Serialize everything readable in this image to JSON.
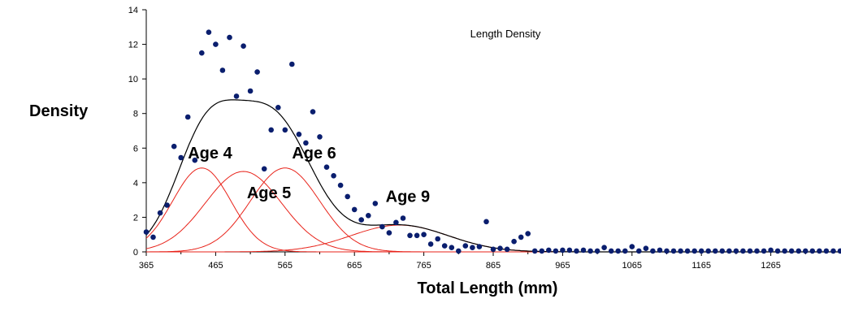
{
  "chart_data": {
    "type": "scatter",
    "title": "Length Density",
    "xlabel": "Total Length  (mm)",
    "ylabel": "Density",
    "xlim": [
      365,
      1365
    ],
    "ylim": [
      0,
      14
    ],
    "x_ticks": [
      "365",
      "465",
      "565",
      "665",
      "765",
      "865",
      "965",
      "1065",
      "1165",
      "1265"
    ],
    "y_ticks": [
      "0",
      "2",
      "4",
      "6",
      "8",
      "10",
      "12",
      "14"
    ],
    "grid": false,
    "colors": {
      "points": "#0a1e6e",
      "total_curve": "#000000",
      "component_curves": "#e8231a"
    },
    "observed_points": [
      [
        365,
        1.15
      ],
      [
        375,
        0.85
      ],
      [
        385,
        2.25
      ],
      [
        395,
        2.7
      ],
      [
        405,
        6.1
      ],
      [
        415,
        5.45
      ],
      [
        425,
        7.8
      ],
      [
        435,
        5.3
      ],
      [
        445,
        11.5
      ],
      [
        455,
        12.7
      ],
      [
        465,
        12.0
      ],
      [
        475,
        10.5
      ],
      [
        485,
        12.4
      ],
      [
        495,
        9.0
      ],
      [
        505,
        11.9
      ],
      [
        515,
        9.3
      ],
      [
        525,
        10.4
      ],
      [
        535,
        4.8
      ],
      [
        545,
        7.05
      ],
      [
        555,
        8.35
      ],
      [
        565,
        7.05
      ],
      [
        575,
        10.85
      ],
      [
        585,
        6.8
      ],
      [
        595,
        6.3
      ],
      [
        605,
        8.1
      ],
      [
        615,
        6.65
      ],
      [
        625,
        4.9
      ],
      [
        635,
        4.4
      ],
      [
        645,
        3.85
      ],
      [
        655,
        3.2
      ],
      [
        665,
        2.45
      ],
      [
        675,
        1.85
      ],
      [
        685,
        2.1
      ],
      [
        695,
        2.8
      ],
      [
        705,
        1.45
      ],
      [
        715,
        1.1
      ],
      [
        725,
        1.7
      ],
      [
        735,
        1.95
      ],
      [
        745,
        0.95
      ],
      [
        755,
        0.95
      ],
      [
        765,
        1.0
      ],
      [
        775,
        0.45
      ],
      [
        785,
        0.75
      ],
      [
        795,
        0.35
      ],
      [
        805,
        0.25
      ],
      [
        815,
        0.05
      ],
      [
        825,
        0.35
      ],
      [
        835,
        0.25
      ],
      [
        845,
        0.3
      ],
      [
        855,
        1.75
      ],
      [
        865,
        0.15
      ],
      [
        875,
        0.2
      ],
      [
        885,
        0.15
      ],
      [
        895,
        0.6
      ],
      [
        905,
        0.85
      ],
      [
        915,
        1.05
      ],
      [
        925,
        0.05
      ],
      [
        935,
        0.05
      ],
      [
        945,
        0.1
      ],
      [
        955,
        0.05
      ],
      [
        965,
        0.1
      ],
      [
        975,
        0.1
      ],
      [
        985,
        0.05
      ],
      [
        995,
        0.1
      ],
      [
        1005,
        0.05
      ],
      [
        1015,
        0.05
      ],
      [
        1025,
        0.25
      ],
      [
        1035,
        0.05
      ],
      [
        1045,
        0.05
      ],
      [
        1055,
        0.05
      ],
      [
        1065,
        0.3
      ],
      [
        1075,
        0.05
      ],
      [
        1085,
        0.2
      ],
      [
        1095,
        0.05
      ],
      [
        1105,
        0.1
      ],
      [
        1115,
        0.05
      ],
      [
        1125,
        0.05
      ],
      [
        1135,
        0.05
      ],
      [
        1145,
        0.05
      ],
      [
        1155,
        0.05
      ],
      [
        1165,
        0.05
      ],
      [
        1175,
        0.05
      ],
      [
        1185,
        0.05
      ],
      [
        1195,
        0.05
      ],
      [
        1205,
        0.05
      ],
      [
        1215,
        0.05
      ],
      [
        1225,
        0.05
      ],
      [
        1235,
        0.05
      ],
      [
        1245,
        0.05
      ],
      [
        1255,
        0.05
      ],
      [
        1265,
        0.1
      ],
      [
        1275,
        0.05
      ],
      [
        1285,
        0.05
      ],
      [
        1295,
        0.05
      ],
      [
        1305,
        0.05
      ],
      [
        1315,
        0.05
      ],
      [
        1325,
        0.05
      ],
      [
        1335,
        0.05
      ],
      [
        1345,
        0.05
      ],
      [
        1355,
        0.05
      ],
      [
        1365,
        0.05
      ]
    ],
    "components": [
      {
        "name": "Age 4",
        "mean": 445,
        "sd": 42,
        "peak": 4.85
      },
      {
        "name": "Age 5",
        "mean": 505,
        "sd": 55,
        "peak": 4.65
      },
      {
        "name": "Age 6",
        "mean": 565,
        "sd": 50,
        "peak": 4.85
      },
      {
        "name": "Age 9",
        "mean": 730,
        "sd": 70,
        "peak": 1.55
      }
    ],
    "annotations": [
      {
        "text": "Age 4",
        "x": 425,
        "y": 5.4
      },
      {
        "text": "Age 5",
        "x": 510,
        "y": 3.1
      },
      {
        "text": "Age 6",
        "x": 575,
        "y": 5.4
      },
      {
        "text": "Age 9",
        "x": 710,
        "y": 2.9
      }
    ]
  }
}
